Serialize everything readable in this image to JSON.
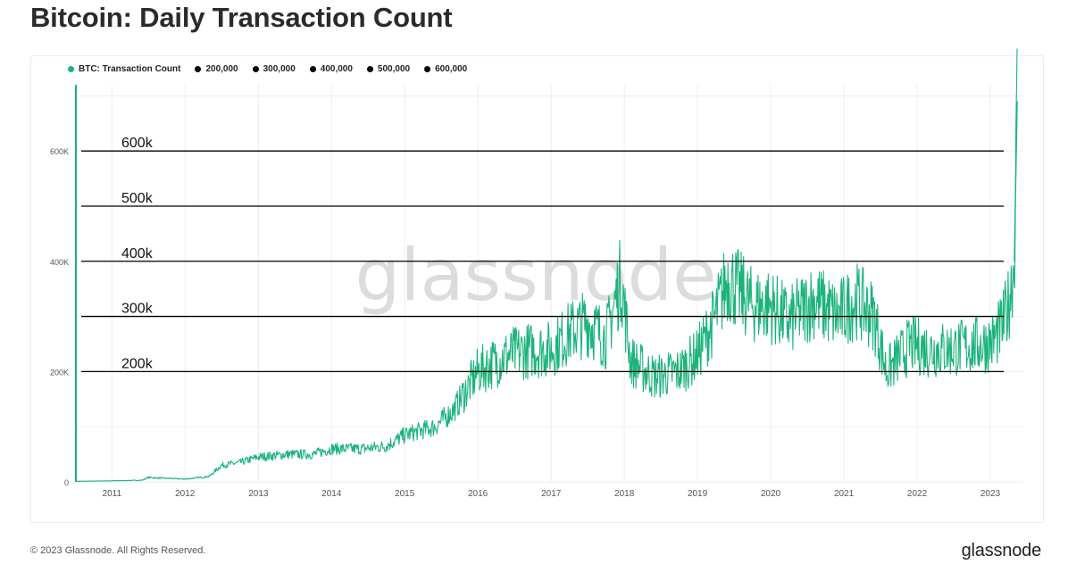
{
  "title": "Bitcoin: Daily Transaction Count",
  "footer": {
    "copyright": "© 2023 Glassnode. All Rights Reserved.",
    "brand": "glassnode"
  },
  "watermark": "glassnode",
  "colors": {
    "series": "#1bb37c",
    "reference": "#000000",
    "grid": "#eeeeee",
    "tick_text": "#555555"
  },
  "chart_data": {
    "type": "line",
    "title": "Bitcoin: Daily Transaction Count",
    "xlabel": "",
    "ylabel": "",
    "xlim": [
      "2010-07-01",
      "2023-06-15"
    ],
    "ylim": [
      0,
      720000
    ],
    "grid": true,
    "legend_position": "top-left",
    "x_ticks": [
      "2011",
      "2012",
      "2013",
      "2014",
      "2015",
      "2016",
      "2017",
      "2018",
      "2019",
      "2020",
      "2021",
      "2022",
      "2023"
    ],
    "y_ticks": [
      {
        "value": 0,
        "label": "0"
      },
      {
        "value": 200000,
        "label": "200K"
      },
      {
        "value": 400000,
        "label": "400K"
      },
      {
        "value": 600000,
        "label": "600K"
      }
    ],
    "legend": [
      {
        "label": "BTC: Transaction Count",
        "color": "#1bb37c"
      },
      {
        "label": "200,000",
        "color": "#000000"
      },
      {
        "label": "300,000",
        "color": "#000000"
      },
      {
        "label": "400,000",
        "color": "#000000"
      },
      {
        "label": "500,000",
        "color": "#000000"
      },
      {
        "label": "600,000",
        "color": "#000000"
      }
    ],
    "reference_lines": [
      {
        "value": 200000,
        "label": "200k"
      },
      {
        "value": 300000,
        "label": "300k"
      },
      {
        "value": 400000,
        "label": "400k"
      },
      {
        "value": 500000,
        "label": "500k"
      },
      {
        "value": 600000,
        "label": "600k"
      }
    ],
    "series": [
      {
        "name": "BTC: Transaction Count",
        "color": "#1bb37c",
        "x": [
          "2010-07-01",
          "2011-01-01",
          "2011-06-01",
          "2011-07-01",
          "2012-01-01",
          "2012-05-01",
          "2012-07-01",
          "2012-10-01",
          "2013-01-01",
          "2013-06-01",
          "2013-10-01",
          "2014-01-01",
          "2014-06-01",
          "2014-10-01",
          "2015-01-01",
          "2015-06-01",
          "2015-09-01",
          "2016-01-01",
          "2016-06-01",
          "2016-10-01",
          "2017-01-01",
          "2017-04-01",
          "2017-07-01",
          "2017-10-01",
          "2017-12-15",
          "2018-02-01",
          "2018-06-01",
          "2018-10-01",
          "2019-01-01",
          "2019-04-01",
          "2019-06-01",
          "2019-10-01",
          "2020-01-01",
          "2020-04-01",
          "2020-08-01",
          "2020-12-01",
          "2021-03-01",
          "2021-06-01",
          "2021-08-01",
          "2021-12-01",
          "2022-03-01",
          "2022-06-01",
          "2022-09-01",
          "2022-12-01",
          "2023-01-15",
          "2023-03-01",
          "2023-04-01",
          "2023-05-01",
          "2023-05-15"
        ],
        "y": [
          1000,
          2000,
          3000,
          8000,
          5000,
          10000,
          30000,
          35000,
          45000,
          50000,
          50000,
          60000,
          60000,
          65000,
          85000,
          100000,
          130000,
          200000,
          230000,
          240000,
          240000,
          270000,
          290000,
          260000,
          370000,
          220000,
          190000,
          200000,
          230000,
          300000,
          370000,
          320000,
          320000,
          290000,
          330000,
          300000,
          330000,
          300000,
          200000,
          250000,
          240000,
          240000,
          245000,
          250000,
          255000,
          280000,
          320000,
          400000,
          690000
        ]
      }
    ]
  }
}
